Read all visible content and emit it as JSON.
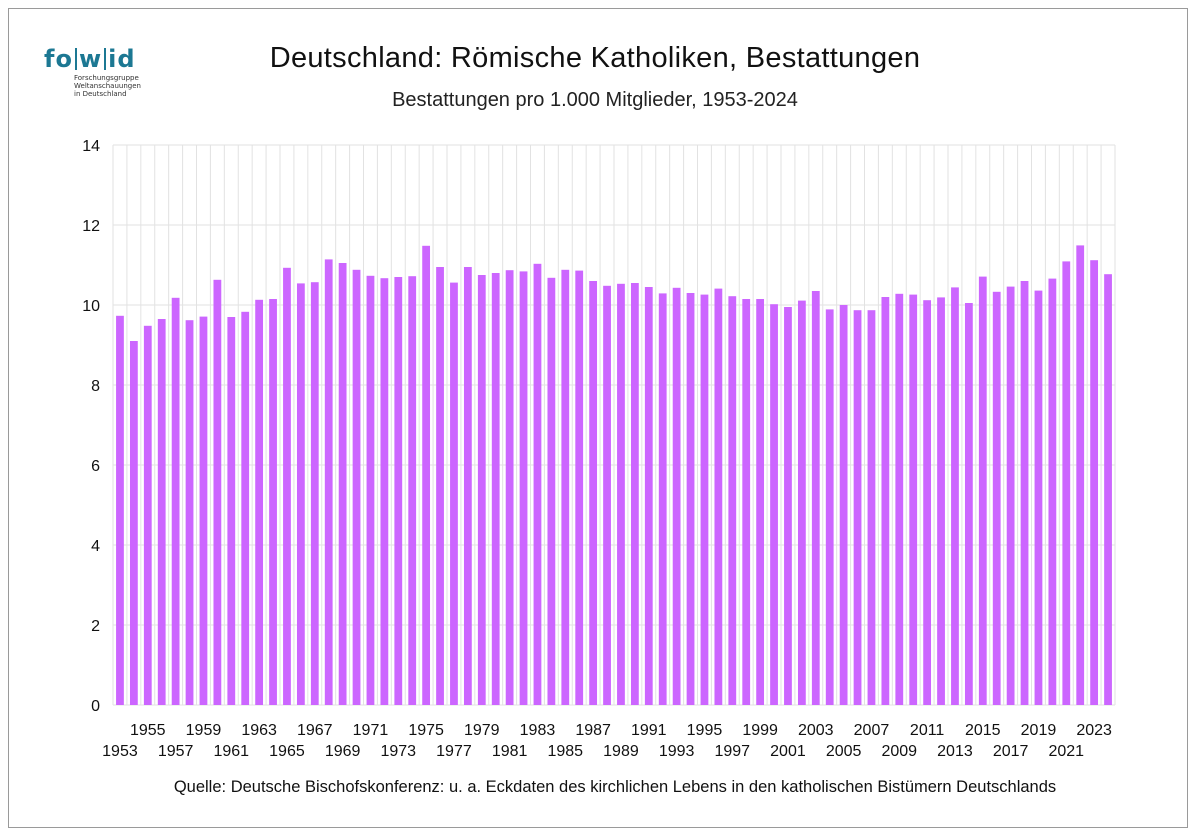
{
  "header": {
    "title": "Deutschland: Römische Katholiken, Bestattungen",
    "subtitle": "Bestattungen pro 1.000 Mitglieder, 1953-2024"
  },
  "logo": {
    "part1": "fo",
    "part2": "w",
    "part3": "id",
    "line1": "Forschungsgruppe",
    "line2": "Weltanschauungen",
    "line3": "in Deutschland"
  },
  "footer": {
    "source": "Quelle: Deutsche Bischofskonferenz: u. a.  Eckdaten des kirchlichen Lebens in den katholischen Bistümern Deutschlands"
  },
  "colors": {
    "bar": "#cc66ff",
    "grid": "#e2e2e2",
    "logo": "#1c7893"
  },
  "chart_data": {
    "type": "bar",
    "title": "Deutschland: Römische Katholiken, Bestattungen",
    "subtitle": "Bestattungen pro 1.000 Mitglieder, 1953-2024",
    "ylim": [
      0,
      14
    ],
    "yticks": [
      0,
      2,
      4,
      6,
      8,
      10,
      12,
      14
    ],
    "grid": true,
    "categories": [
      1953,
      1954,
      1955,
      1956,
      1957,
      1958,
      1959,
      1960,
      1961,
      1962,
      1963,
      1964,
      1965,
      1966,
      1967,
      1968,
      1969,
      1970,
      1971,
      1972,
      1973,
      1974,
      1975,
      1976,
      1977,
      1978,
      1979,
      1980,
      1981,
      1982,
      1983,
      1984,
      1985,
      1986,
      1987,
      1988,
      1989,
      1990,
      1991,
      1992,
      1993,
      1994,
      1995,
      1996,
      1997,
      1998,
      1999,
      2000,
      2001,
      2002,
      2003,
      2004,
      2005,
      2006,
      2007,
      2008,
      2009,
      2010,
      2011,
      2012,
      2013,
      2014,
      2015,
      2016,
      2017,
      2018,
      2019,
      2020,
      2021,
      2022,
      2023,
      2024
    ],
    "values": [
      9.73,
      9.1,
      9.48,
      9.65,
      10.18,
      9.62,
      9.71,
      10.63,
      9.7,
      9.83,
      10.13,
      10.15,
      10.93,
      10.54,
      10.57,
      11.14,
      11.05,
      10.88,
      10.73,
      10.67,
      10.7,
      10.72,
      11.48,
      10.95,
      10.56,
      10.95,
      10.75,
      10.8,
      10.87,
      10.84,
      11.03,
      10.68,
      10.88,
      10.86,
      10.6,
      10.48,
      10.53,
      10.55,
      10.45,
      10.29,
      10.43,
      10.3,
      10.26,
      10.41,
      10.22,
      10.15,
      10.15,
      10.02,
      9.95,
      10.11,
      10.35,
      9.89,
      10.0,
      9.87,
      9.87,
      10.2,
      10.28,
      10.26,
      10.12,
      10.19,
      10.44,
      10.05,
      10.71,
      10.33,
      10.46,
      10.6,
      10.36,
      10.66,
      11.09,
      11.49,
      11.12,
      10.77
    ]
  }
}
